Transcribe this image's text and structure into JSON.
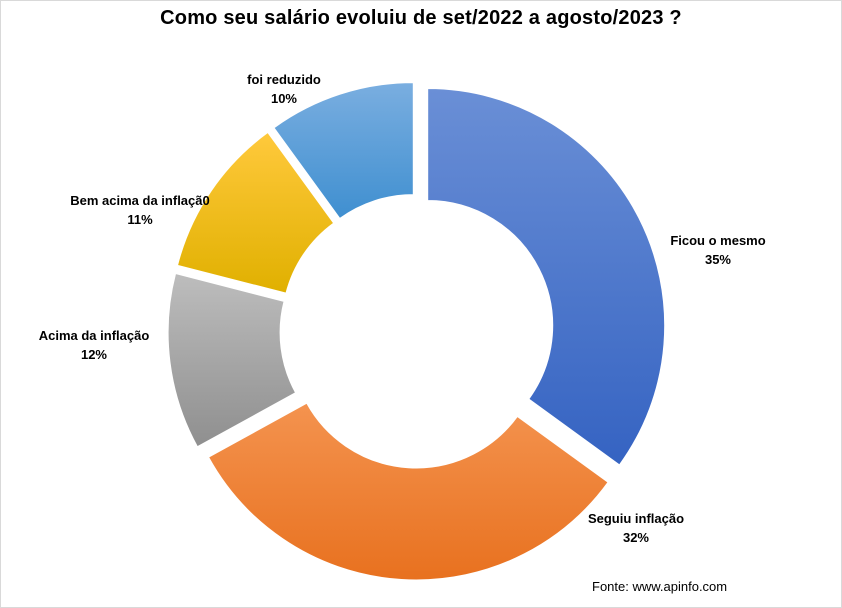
{
  "chart_data": {
    "type": "pie",
    "variant": "donut-exploded",
    "title": "Como seu salário evoluiu de set/2022 a agosto/2023  ?",
    "slices": [
      {
        "label": "Ficou o mesmo",
        "value": 35,
        "value_label": "35%",
        "color_light": "#6a8fd6",
        "color_dark": "#3563c2"
      },
      {
        "label": "Seguiu inflação",
        "value": 32,
        "value_label": "32%",
        "color_light": "#f4934f",
        "color_dark": "#e8711f"
      },
      {
        "label": "Acima da inflação",
        "value": 12,
        "value_label": "12%",
        "color_light": "#bdbdbd",
        "color_dark": "#8f8f8f"
      },
      {
        "label": "Bem acima da inflaçã0",
        "value": 11,
        "value_label": "11%",
        "color_light": "#ffc93c",
        "color_dark": "#e0b000"
      },
      {
        "label": "foi reduzido",
        "value": 10,
        "value_label": "10%",
        "color_light": "#7aaee0",
        "color_dark": "#3f8fd0"
      }
    ],
    "legend": "none"
  },
  "source": "Fonte: www.apinfo.com"
}
